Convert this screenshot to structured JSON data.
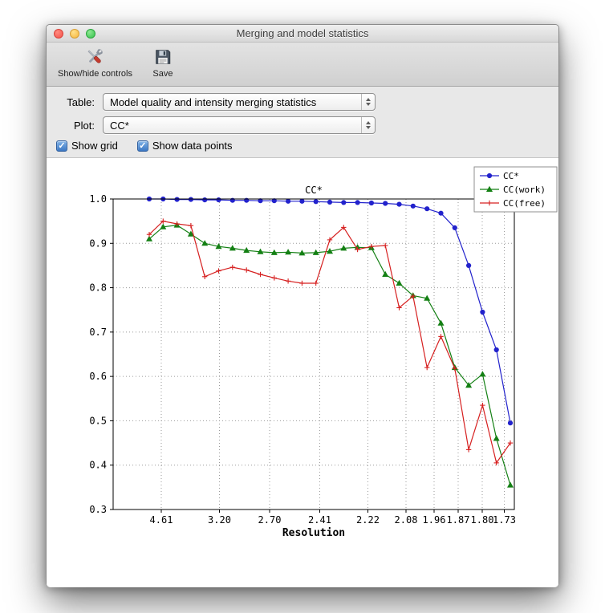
{
  "window": {
    "title": "Merging and model statistics"
  },
  "toolbar": {
    "show_hide_label": "Show/hide controls",
    "save_label": "Save"
  },
  "controls": {
    "table_label": "Table:",
    "table_value": "Model quality and intensity merging statistics",
    "plot_label": "Plot:",
    "plot_value": "CC*",
    "show_grid_label": "Show grid",
    "show_data_points_label": "Show data points",
    "show_grid_checked": true,
    "show_data_points_checked": true
  },
  "icons": {
    "checkmark": "✓"
  },
  "chart_data": {
    "type": "line",
    "title": "CC*",
    "xlabel": "Resolution",
    "ylim": [
      0.3,
      1.0
    ],
    "y_ticks": [
      1.0,
      0.9,
      0.8,
      0.7,
      0.6,
      0.5,
      0.4,
      0.3
    ],
    "x_ticks": [
      {
        "label": "4.61",
        "pos": 0.12
      },
      {
        "label": "3.20",
        "pos": 0.265
      },
      {
        "label": "2.70",
        "pos": 0.39
      },
      {
        "label": "2.41",
        "pos": 0.515
      },
      {
        "label": "2.22",
        "pos": 0.635
      },
      {
        "label": "2.08",
        "pos": 0.73
      },
      {
        "label": "1.96",
        "pos": 0.8
      },
      {
        "label": "1.87",
        "pos": 0.86
      },
      {
        "label": "1.80",
        "pos": 0.92
      },
      {
        "label": "1.73",
        "pos": 0.975
      }
    ],
    "x_span": [
      0.09,
      0.99
    ],
    "grid": true,
    "show_markers": true,
    "legend_position": "top-right",
    "series": [
      {
        "name": "CC*",
        "color": "#2222cc",
        "marker": "circle",
        "values": [
          1.0,
          1.0,
          0.999,
          0.999,
          0.998,
          0.998,
          0.997,
          0.997,
          0.996,
          0.996,
          0.995,
          0.995,
          0.994,
          0.993,
          0.992,
          0.992,
          0.991,
          0.99,
          0.988,
          0.984,
          0.978,
          0.968,
          0.935,
          0.85,
          0.745,
          0.66,
          0.495
        ]
      },
      {
        "name": "CC(work)",
        "color": "#148014",
        "marker": "triangle",
        "values": [
          0.91,
          0.937,
          0.941,
          0.921,
          0.9,
          0.893,
          0.889,
          0.884,
          0.881,
          0.879,
          0.88,
          0.878,
          0.879,
          0.882,
          0.889,
          0.891,
          0.89,
          0.83,
          0.81,
          0.782,
          0.776,
          0.72,
          0.62,
          0.58,
          0.605,
          0.46,
          0.355
        ]
      },
      {
        "name": "CC(free)",
        "color": "#d62020",
        "marker": "plus",
        "values": [
          0.92,
          0.95,
          0.944,
          0.94,
          0.825,
          0.838,
          0.846,
          0.84,
          0.83,
          0.822,
          0.815,
          0.81,
          0.81,
          0.908,
          0.936,
          0.886,
          0.893,
          0.895,
          0.755,
          0.781,
          0.62,
          0.69,
          0.618,
          0.435,
          0.535,
          0.405,
          0.45
        ]
      }
    ]
  }
}
